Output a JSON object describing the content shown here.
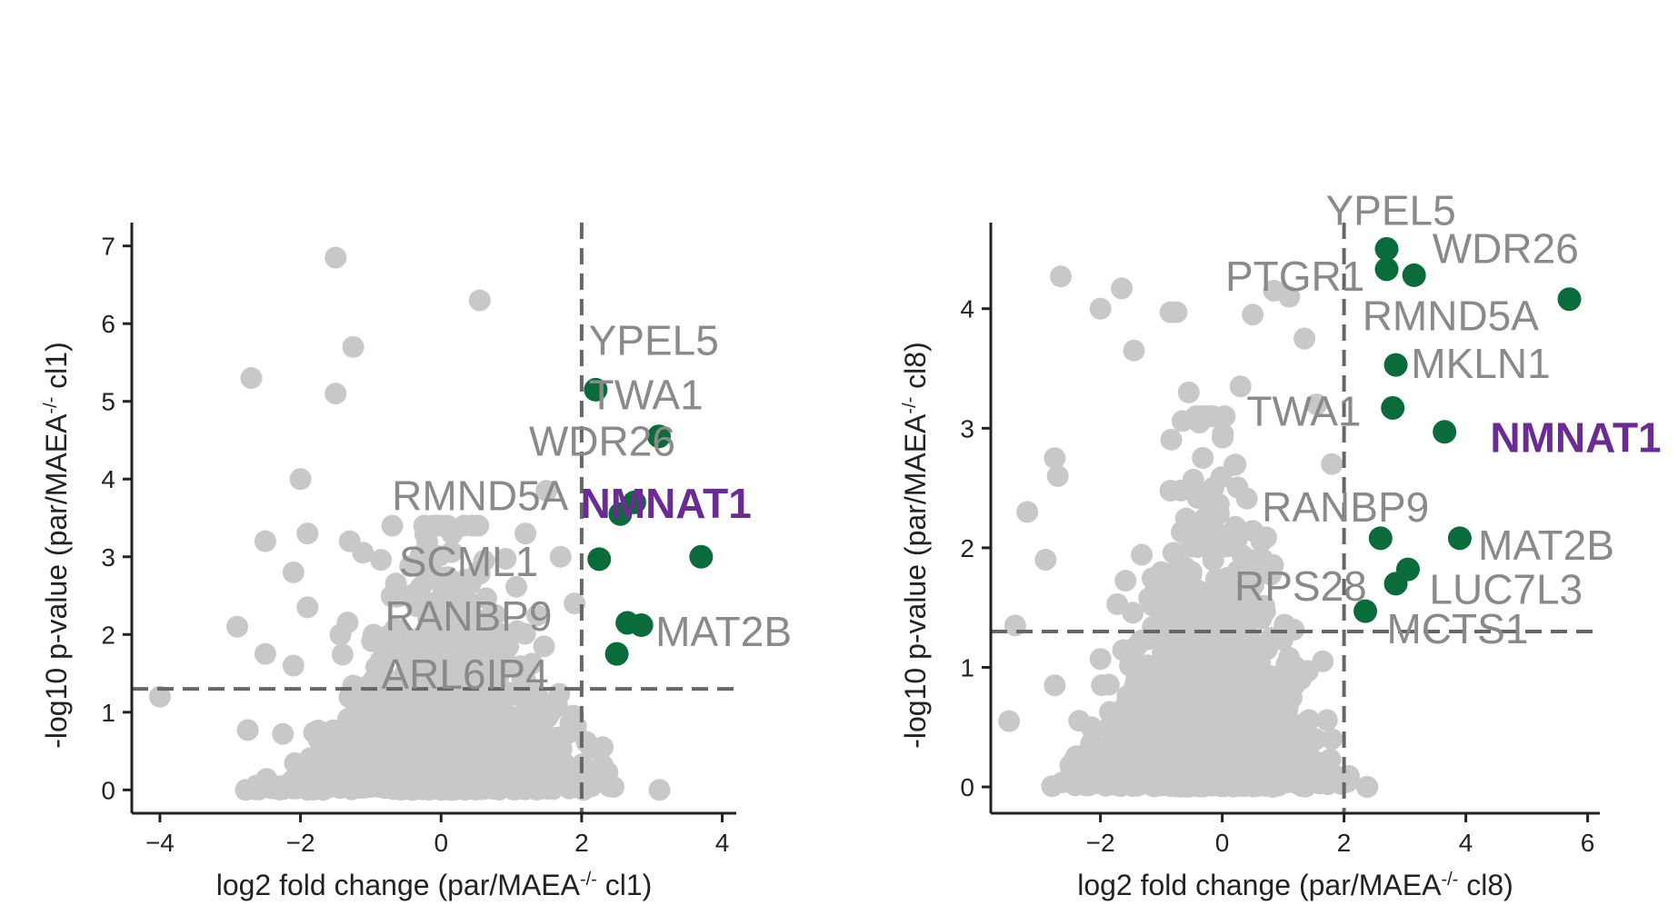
{
  "colors": {
    "background_points": "#c8c8c8",
    "hit_points": "#0b6b3a",
    "highlight_label": "#6a2c91",
    "label": "#8a8a8a",
    "threshold_line": "#666666",
    "axis": "#222222"
  },
  "chart_data": [
    {
      "type": "scatter",
      "xlabel": "log2 fold change (par/MAEA",
      "xlabel_sup": "-/-",
      "xlabel_tail": " cl1)",
      "ylabel": "-log10 p-value (par/MAEA",
      "ylabel_sup": "-/-",
      "ylabel_tail": " cl1)",
      "xlim": [
        -4.4,
        4.2
      ],
      "ylim": [
        -0.3,
        7.3
      ],
      "xticks": [
        -4,
        -2,
        0,
        2,
        4
      ],
      "yticks": [
        0,
        1,
        2,
        3,
        4,
        5,
        6,
        7
      ],
      "grid": false,
      "thresholds": {
        "x": 2,
        "y": 1.3
      },
      "background_outliers": [
        [
          -1.5,
          6.85
        ],
        [
          0.55,
          6.3
        ],
        [
          -1.25,
          5.7
        ],
        [
          -2.7,
          5.3
        ],
        [
          -1.5,
          5.1
        ],
        [
          -2.0,
          4.0
        ],
        [
          -2.5,
          3.2
        ],
        [
          -1.9,
          3.3
        ],
        [
          -1.3,
          3.2
        ],
        [
          -2.1,
          2.8
        ],
        [
          -2.9,
          2.1
        ],
        [
          -2.5,
          1.75
        ],
        [
          -2.1,
          1.6
        ],
        [
          -4.0,
          1.2
        ],
        [
          -2.75,
          0.77
        ],
        [
          -2.25,
          0.72
        ],
        [
          2.3,
          0.55
        ],
        [
          1.5,
          3.85
        ],
        [
          1.7,
          3.0
        ],
        [
          -1.9,
          2.35
        ],
        [
          1.2,
          3.3
        ],
        [
          1.9,
          2.4
        ],
        [
          1.2,
          0.3
        ],
        [
          -1.6,
          0.3
        ]
      ],
      "background_cloud": {
        "n": 1500,
        "x_center": 0.05,
        "x_spread": 0.85,
        "y_scale": 0.9,
        "y_max": 3.4
      },
      "hits": [
        {
          "gene": "YPEL5",
          "x": 2.2,
          "y": 5.15,
          "lx": 2.1,
          "ly": 5.6,
          "anchor": "start"
        },
        {
          "gene": "TWA1",
          "x": 3.1,
          "y": 4.55,
          "lx": 2.1,
          "ly": 4.9,
          "anchor": "start"
        },
        {
          "gene": "WDR26",
          "x": 2.75,
          "y": 3.7,
          "lx": 1.25,
          "ly": 4.3,
          "anchor": "start"
        },
        {
          "gene": "RMND5A",
          "x": 2.55,
          "y": 3.55,
          "lx": -0.7,
          "ly": 3.6,
          "anchor": "start"
        },
        {
          "gene": "NMNAT1",
          "x": 3.7,
          "y": 3.0,
          "lx": 3.2,
          "ly": 3.5,
          "anchor": "middle",
          "highlight": true
        },
        {
          "gene": "SCML1",
          "x": 2.25,
          "y": 2.97,
          "lx": -0.6,
          "ly": 2.75,
          "anchor": "start"
        },
        {
          "gene": "RANBP9",
          "x": 2.65,
          "y": 2.15,
          "lx": -0.8,
          "ly": 2.05,
          "anchor": "start"
        },
        {
          "gene": "MAT2B",
          "x": 2.85,
          "y": 2.12,
          "lx": 3.05,
          "ly": 1.85,
          "anchor": "start"
        },
        {
          "gene": "ARL6IP4",
          "x": 2.5,
          "y": 1.75,
          "lx": -0.85,
          "ly": 1.3,
          "anchor": "start"
        }
      ]
    },
    {
      "type": "scatter",
      "xlabel": "log2 fold change (par/MAEA",
      "xlabel_sup": "-/-",
      "xlabel_tail": " cl8)",
      "ylabel": "-log10 p-value (par/MAEA",
      "ylabel_sup": "-/-",
      "ylabel_tail": " cl8)",
      "xlim": [
        -3.8,
        6.2
      ],
      "ylim": [
        -0.22,
        4.72
      ],
      "xticks": [
        -2,
        0,
        2,
        4,
        6
      ],
      "yticks": [
        0,
        1,
        2,
        3,
        4
      ],
      "grid": false,
      "thresholds": {
        "x": 2,
        "y": 1.3
      },
      "background_outliers": [
        [
          -2.65,
          4.27
        ],
        [
          -1.65,
          4.17
        ],
        [
          -2.0,
          4.0
        ],
        [
          -0.85,
          3.97
        ],
        [
          -0.75,
          3.97
        ],
        [
          -1.45,
          3.65
        ],
        [
          0.85,
          4.15
        ],
        [
          1.1,
          4.1
        ],
        [
          0.5,
          3.95
        ],
        [
          1.35,
          3.75
        ],
        [
          -2.75,
          2.75
        ],
        [
          -2.7,
          2.6
        ],
        [
          -3.2,
          2.3
        ],
        [
          -2.9,
          1.9
        ],
        [
          -3.4,
          1.35
        ],
        [
          -3.5,
          0.55
        ],
        [
          -2.75,
          0.85
        ],
        [
          -2.15,
          0.5
        ],
        [
          1.8,
          2.7
        ],
        [
          1.55,
          3.2
        ],
        [
          1.8,
          0.4
        ],
        [
          1.4,
          0.55
        ],
        [
          1.65,
          1.05
        ],
        [
          -0.55,
          3.3
        ],
        [
          0.3,
          3.35
        ]
      ],
      "background_cloud": {
        "n": 1700,
        "x_center": -0.25,
        "x_spread": 0.8,
        "y_scale": 0.75,
        "y_max": 3.1
      },
      "hits": [
        {
          "gene": "YPEL5",
          "x": 2.7,
          "y": 4.5,
          "lx": 1.7,
          "ly": 4.7,
          "anchor": "start"
        },
        {
          "gene": "WDR26",
          "x": 3.15,
          "y": 4.28,
          "lx": 3.45,
          "ly": 4.38,
          "anchor": "start"
        },
        {
          "gene": "PTGR1",
          "x": 2.7,
          "y": 4.33,
          "lx": 0.05,
          "ly": 4.15,
          "anchor": "start"
        },
        {
          "gene": "RMND5A",
          "x": 5.7,
          "y": 4.08,
          "lx": 2.3,
          "ly": 3.82,
          "anchor": "start"
        },
        {
          "gene": "MKLN1",
          "x": 2.85,
          "y": 3.53,
          "lx": 3.1,
          "ly": 3.42,
          "anchor": "start"
        },
        {
          "gene": "TWA1",
          "x": 2.8,
          "y": 3.17,
          "lx": 0.4,
          "ly": 3.02,
          "anchor": "start"
        },
        {
          "gene": "NMNAT1",
          "x": 3.65,
          "y": 2.97,
          "lx": 4.4,
          "ly": 2.8,
          "anchor": "start",
          "highlight": true
        },
        {
          "gene": "RANBP9",
          "x": 2.6,
          "y": 2.08,
          "lx": 0.65,
          "ly": 2.22,
          "anchor": "start"
        },
        {
          "gene": "MAT2B",
          "x": 3.9,
          "y": 2.08,
          "lx": 4.2,
          "ly": 1.9,
          "anchor": "start"
        },
        {
          "gene": "LUC7L3",
          "x": 3.05,
          "y": 1.82,
          "lx": 3.4,
          "ly": 1.53,
          "anchor": "start"
        },
        {
          "gene": "RPS28",
          "x": 2.85,
          "y": 1.7,
          "lx": 0.2,
          "ly": 1.56,
          "anchor": "start"
        },
        {
          "gene": "MCTS1",
          "x": 2.35,
          "y": 1.47,
          "lx": 2.7,
          "ly": 1.2,
          "anchor": "start"
        }
      ]
    }
  ]
}
